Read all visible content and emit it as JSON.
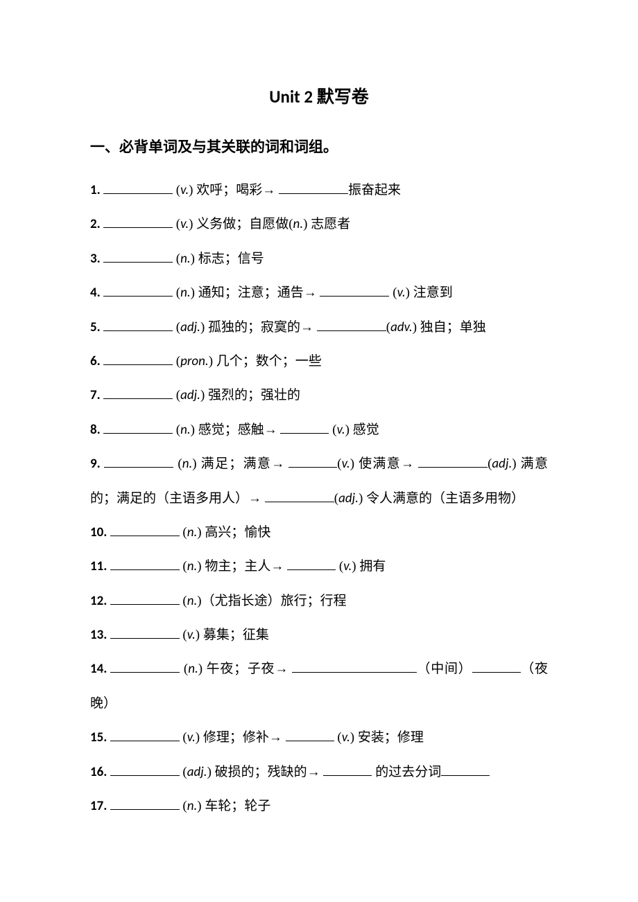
{
  "title": "Unit 2  默写卷",
  "section_heading": "一、必背单词及与其关联的词和词组。",
  "items": [
    {
      "num": "1.",
      "parts": [
        {
          "type": "blank",
          "width": "b-md"
        },
        {
          "type": "text",
          "val": " ("
        },
        {
          "type": "pos",
          "val": "v."
        },
        {
          "type": "text",
          "val": ") 欢呼；喝彩"
        },
        {
          "type": "arrow"
        },
        {
          "type": "text",
          "val": " "
        },
        {
          "type": "blank",
          "width": "b-md"
        },
        {
          "type": "text",
          "val": "振奋起来"
        }
      ]
    },
    {
      "num": "2.",
      "parts": [
        {
          "type": "blank",
          "width": "b-md"
        },
        {
          "type": "text",
          "val": " ("
        },
        {
          "type": "pos",
          "val": "v."
        },
        {
          "type": "text",
          "val": ") 义务做；自愿做("
        },
        {
          "type": "pos",
          "val": "n."
        },
        {
          "type": "text",
          "val": ") 志愿者"
        }
      ]
    },
    {
      "num": "3.",
      "parts": [
        {
          "type": "blank",
          "width": "b-md"
        },
        {
          "type": "text",
          "val": " ("
        },
        {
          "type": "pos",
          "val": "n."
        },
        {
          "type": "text",
          "val": ") 标志；信号"
        }
      ]
    },
    {
      "num": "4.",
      "parts": [
        {
          "type": "blank",
          "width": "b-md"
        },
        {
          "type": "text",
          "val": " ("
        },
        {
          "type": "pos",
          "val": "n."
        },
        {
          "type": "text",
          "val": ") 通知；注意；通告"
        },
        {
          "type": "arrow"
        },
        {
          "type": "text",
          "val": " "
        },
        {
          "type": "blank",
          "width": "b-md"
        },
        {
          "type": "text",
          "val": " ("
        },
        {
          "type": "pos",
          "val": "v."
        },
        {
          "type": "text",
          "val": ") 注意到"
        }
      ]
    },
    {
      "num": "5.",
      "parts": [
        {
          "type": "blank",
          "width": "b-md"
        },
        {
          "type": "text",
          "val": " ("
        },
        {
          "type": "pos",
          "val": "adj."
        },
        {
          "type": "text",
          "val": ") 孤独的；寂寞的"
        },
        {
          "type": "arrow"
        },
        {
          "type": "text",
          "val": " "
        },
        {
          "type": "blank",
          "width": "b-md"
        },
        {
          "type": "text",
          "val": "("
        },
        {
          "type": "pos",
          "val": "adv."
        },
        {
          "type": "text",
          "val": ") 独自；单独"
        }
      ]
    },
    {
      "num": "6.",
      "parts": [
        {
          "type": "blank",
          "width": "b-md"
        },
        {
          "type": "text",
          "val": " ("
        },
        {
          "type": "pos",
          "val": "pron."
        },
        {
          "type": "text",
          "val": ") 几个；数个；一些"
        }
      ]
    },
    {
      "num": "7.",
      "parts": [
        {
          "type": "blank",
          "width": "b-md"
        },
        {
          "type": "text",
          "val": " ("
        },
        {
          "type": "pos",
          "val": "adj."
        },
        {
          "type": "text",
          "val": ") 强烈的；强壮的"
        }
      ]
    },
    {
      "num": "8.",
      "parts": [
        {
          "type": "blank",
          "width": "b-md"
        },
        {
          "type": "text",
          "val": " ("
        },
        {
          "type": "pos",
          "val": "n."
        },
        {
          "type": "text",
          "val": ") 感觉；感触"
        },
        {
          "type": "arrow"
        },
        {
          "type": "text",
          "val": " "
        },
        {
          "type": "blank",
          "width": "b-sm"
        },
        {
          "type": "text",
          "val": " ("
        },
        {
          "type": "pos",
          "val": "v."
        },
        {
          "type": "text",
          "val": ") 感觉"
        }
      ]
    },
    {
      "num": "9.",
      "parts": [
        {
          "type": "blank",
          "width": "b-md"
        },
        {
          "type": "text",
          "val": " ("
        },
        {
          "type": "pos",
          "val": "n."
        },
        {
          "type": "text",
          "val": ") 满足；满意"
        },
        {
          "type": "arrow"
        },
        {
          "type": "text",
          "val": " "
        },
        {
          "type": "blank",
          "width": "b-sm"
        },
        {
          "type": "text",
          "val": "("
        },
        {
          "type": "pos",
          "val": "v."
        },
        {
          "type": "text",
          "val": ") 使满意"
        },
        {
          "type": "arrow"
        },
        {
          "type": "text",
          "val": " "
        },
        {
          "type": "blank",
          "width": "b-md"
        },
        {
          "type": "text",
          "val": "("
        },
        {
          "type": "pos",
          "val": "adj."
        },
        {
          "type": "text",
          "val": ") 满意的；满足的（主语多用人）"
        },
        {
          "type": "arrow"
        },
        {
          "type": "text",
          "val": " "
        },
        {
          "type": "blank",
          "width": "b-md"
        },
        {
          "type": "text",
          "val": "("
        },
        {
          "type": "pos",
          "val": "adj."
        },
        {
          "type": "text",
          "val": ") 令人满意的（主语多用物）"
        }
      ]
    },
    {
      "num": "10.",
      "parts": [
        {
          "type": "blank",
          "width": "b-md"
        },
        {
          "type": "text",
          "val": " ("
        },
        {
          "type": "pos",
          "val": "n."
        },
        {
          "type": "text",
          "val": ") 高兴；愉快"
        }
      ]
    },
    {
      "num": "11.",
      "parts": [
        {
          "type": "blank",
          "width": "b-md"
        },
        {
          "type": "text",
          "val": " ("
        },
        {
          "type": "pos",
          "val": "n."
        },
        {
          "type": "text",
          "val": ") 物主；主人"
        },
        {
          "type": "arrow"
        },
        {
          "type": "text",
          "val": " "
        },
        {
          "type": "blank",
          "width": "b-sm"
        },
        {
          "type": "text",
          "val": " ("
        },
        {
          "type": "pos",
          "val": "v."
        },
        {
          "type": "text",
          "val": ") 拥有"
        }
      ]
    },
    {
      "num": "12.",
      "parts": [
        {
          "type": "blank",
          "width": "b-md"
        },
        {
          "type": "text",
          "val": " ("
        },
        {
          "type": "pos",
          "val": "n."
        },
        {
          "type": "text",
          "val": ")（尤指长途）旅行；行程"
        }
      ]
    },
    {
      "num": "13.",
      "parts": [
        {
          "type": "blank",
          "width": "b-md"
        },
        {
          "type": "text",
          "val": " ("
        },
        {
          "type": "pos",
          "val": "v."
        },
        {
          "type": "text",
          "val": ") 募集；征集"
        }
      ]
    },
    {
      "num": "14.",
      "parts": [
        {
          "type": "blank",
          "width": "b-md"
        },
        {
          "type": "text",
          "val": " ("
        },
        {
          "type": "pos",
          "val": "n."
        },
        {
          "type": "text",
          "val": ") 午夜；子夜"
        },
        {
          "type": "arrow"
        },
        {
          "type": "text",
          "val": " "
        },
        {
          "type": "blank",
          "width": "b-lg"
        },
        {
          "type": "text",
          "val": "（中间）"
        },
        {
          "type": "blank",
          "width": "b-sm"
        },
        {
          "type": "text",
          "val": "（夜晚）"
        }
      ]
    },
    {
      "num": "15.",
      "parts": [
        {
          "type": "blank",
          "width": "b-md"
        },
        {
          "type": "text",
          "val": " ("
        },
        {
          "type": "pos",
          "val": "v."
        },
        {
          "type": "text",
          "val": ") 修理；修补"
        },
        {
          "type": "arrow"
        },
        {
          "type": "text",
          "val": " "
        },
        {
          "type": "blank",
          "width": "b-sm"
        },
        {
          "type": "text",
          "val": " ("
        },
        {
          "type": "pos",
          "val": "v."
        },
        {
          "type": "text",
          "val": ") 安装；修理"
        }
      ]
    },
    {
      "num": "16.",
      "parts": [
        {
          "type": "blank",
          "width": "b-md"
        },
        {
          "type": "text",
          "val": " ("
        },
        {
          "type": "pos",
          "val": "adj."
        },
        {
          "type": "text",
          "val": ") 破损的；残缺的"
        },
        {
          "type": "arrow"
        },
        {
          "type": "text",
          "val": " "
        },
        {
          "type": "blank",
          "width": "b-sm"
        },
        {
          "type": "text",
          "val": " 的过去分词"
        },
        {
          "type": "blank",
          "width": "b-sm"
        }
      ]
    },
    {
      "num": "17.",
      "parts": [
        {
          "type": "blank",
          "width": "b-md"
        },
        {
          "type": "text",
          "val": " ("
        },
        {
          "type": "pos",
          "val": "n."
        },
        {
          "type": "text",
          "val": ") 车轮；轮子"
        }
      ]
    }
  ]
}
